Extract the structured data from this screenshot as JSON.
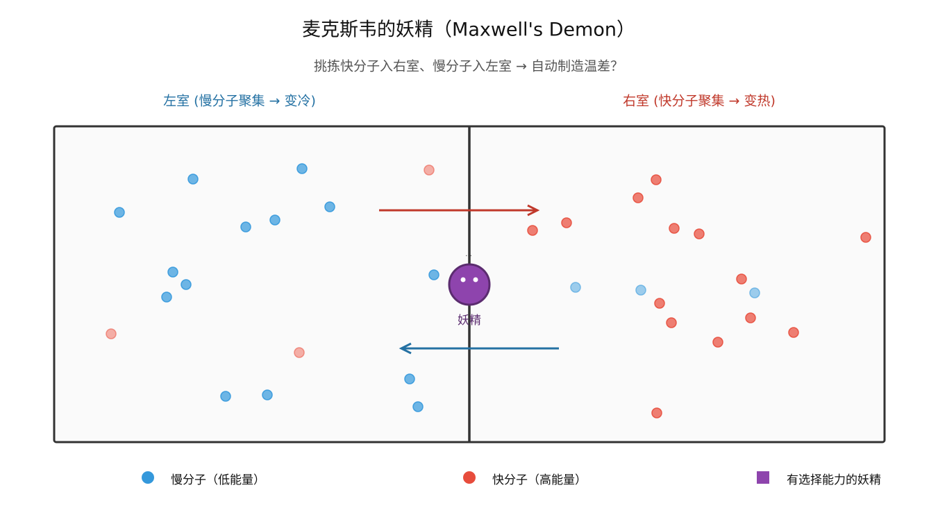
{
  "header": {
    "title": "麦克斯韦的妖精（Maxwell's Demon）",
    "subtitle": "挑拣快分子入右室、慢分子入左室 → 自动制造温差？"
  },
  "chambers": {
    "left": "左室 (慢分子聚集 → 变冷)",
    "right": "右室 (快分子聚集 → 变热)"
  },
  "demon": {
    "label": "妖精"
  },
  "legend": [
    "慢分子（低能量）",
    "快分子（高能量）",
    "有选择能力的妖精"
  ]
}
